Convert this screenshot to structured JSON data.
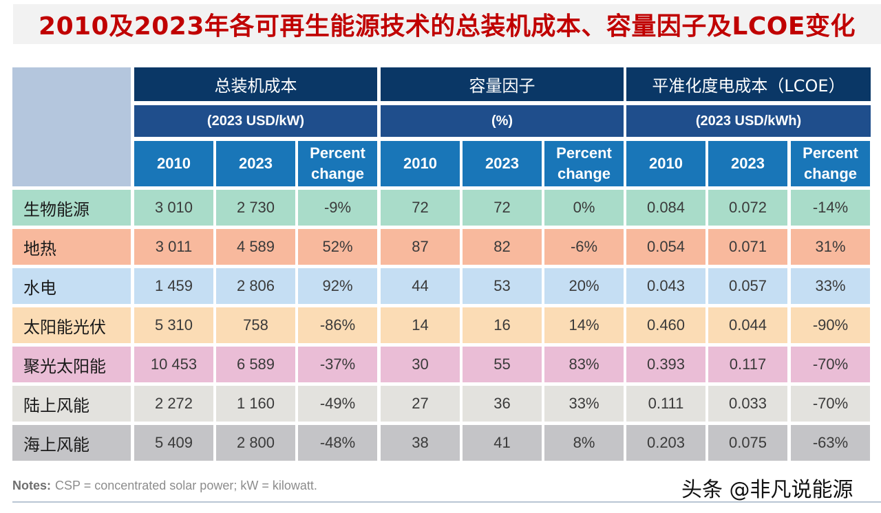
{
  "title": "2010及2023年各可再生能源技术的总装机成本、容量因子及LCOE变化",
  "groups": [
    {
      "label": "总装机成本",
      "unit": "(2023 USD/kW)"
    },
    {
      "label": "容量因子",
      "unit": "(%)"
    },
    {
      "label": "平准化度电成本（LCOE）",
      "unit": "(2023 USD/kWh)"
    }
  ],
  "columns": [
    "2010",
    "2023",
    "Percent\nchange"
  ],
  "row_colors": [
    "#a9dcc9",
    "#f8b99d",
    "#c5def3",
    "#fbdcb5",
    "#eabdd6",
    "#e3e2de",
    "#c4c4c7"
  ],
  "rows": [
    {
      "label": "生物能源",
      "values": [
        "3 010",
        "2 730",
        "-9%",
        "72",
        "72",
        "0%",
        "0.084",
        "0.072",
        "-14%"
      ]
    },
    {
      "label": "地热",
      "values": [
        "3 011",
        "4 589",
        "52%",
        "87",
        "82",
        "-6%",
        "0.054",
        "0.071",
        "31%"
      ]
    },
    {
      "label": "水电",
      "values": [
        "1 459",
        "2 806",
        "92%",
        "44",
        "53",
        "20%",
        "0.043",
        "0.057",
        "33%"
      ]
    },
    {
      "label": "太阳能光伏",
      "values": [
        "5 310",
        "758",
        "-86%",
        "14",
        "16",
        "14%",
        "0.460",
        "0.044",
        "-90%"
      ]
    },
    {
      "label": "聚光太阳能",
      "values": [
        "10 453",
        "6 589",
        "-37%",
        "30",
        "55",
        "83%",
        "0.393",
        "0.117",
        "-70%"
      ]
    },
    {
      "label": "陆上风能",
      "values": [
        "2 272",
        "1 160",
        "-49%",
        "27",
        "36",
        "33%",
        "0.111",
        "0.033",
        "-70%"
      ]
    },
    {
      "label": "海上风能",
      "values": [
        "5 409",
        "2 800",
        "-48%",
        "38",
        "41",
        "8%",
        "0.203",
        "0.075",
        "-63%"
      ]
    }
  ],
  "notes": {
    "label": "Notes:",
    "text": "CSP = concentrated solar power; kW = kilowatt."
  },
  "watermark": "头条 @非凡说能源"
}
